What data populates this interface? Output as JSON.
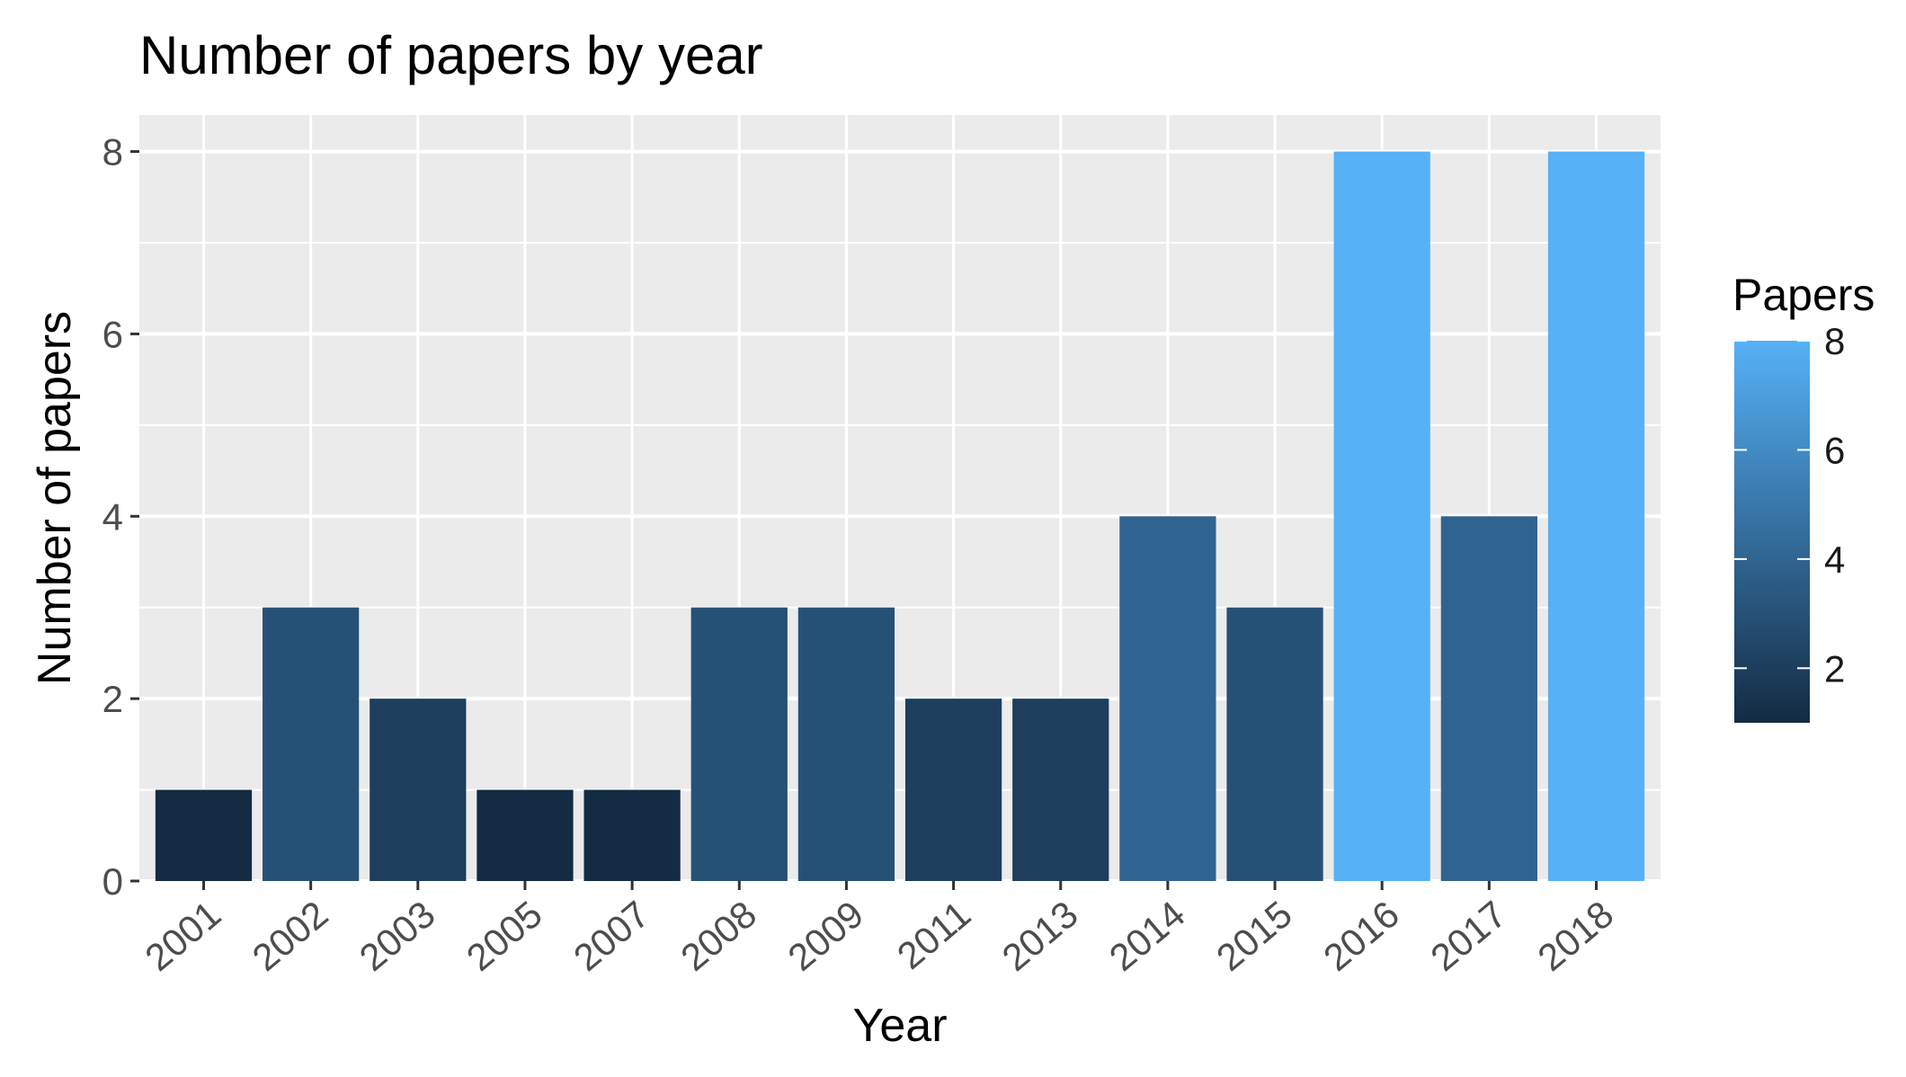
{
  "chart_data": {
    "type": "bar",
    "title": "Number of papers by year",
    "xlabel": "Year",
    "ylabel": "Number of papers",
    "categories": [
      "2001",
      "2002",
      "2003",
      "2005",
      "2007",
      "2008",
      "2009",
      "2011",
      "2013",
      "2014",
      "2015",
      "2016",
      "2017",
      "2018"
    ],
    "values": [
      1,
      3,
      2,
      1,
      1,
      3,
      3,
      2,
      2,
      4,
      3,
      8,
      4,
      8
    ],
    "ylim": [
      0,
      8.4
    ],
    "yticks": [
      "0",
      "2",
      "4",
      "6",
      "8"
    ],
    "grid": true,
    "legend": {
      "title": "Papers",
      "type": "colorbar",
      "placement": "right",
      "range": [
        1,
        8
      ],
      "ticks": [
        "2",
        "4",
        "6",
        "8"
      ],
      "low_color": "#132b43",
      "high_color": "#56b1f7"
    },
    "colors": {
      "panel_background": "#ebebeb",
      "grid": "#ffffff",
      "tick_label": "#4d4d4d"
    }
  }
}
